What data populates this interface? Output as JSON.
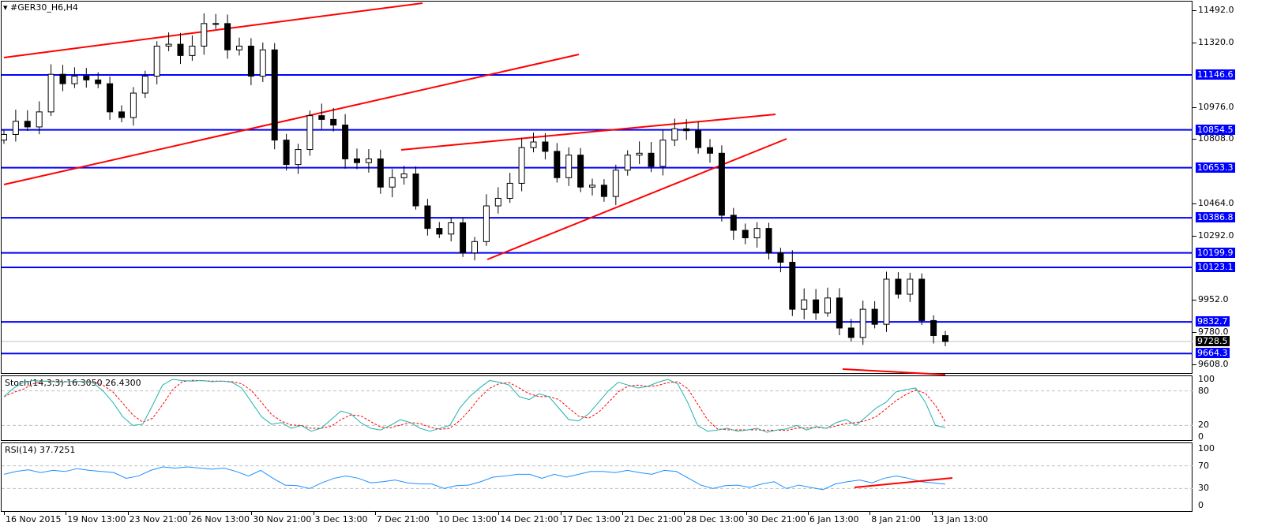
{
  "title": "#GER30_H6,H4",
  "colors": {
    "level": "#0000ff",
    "trend": "#ff0000",
    "stoch_main": "#20b2aa",
    "stoch_signal": "#ff0000",
    "rsi": "#1e90ff"
  },
  "chart_data": {
    "type": "candlestick",
    "title": "#GER30_H6,H4",
    "ylim": [
      9580,
      11520
    ],
    "y_ticks": [
      "11492.0",
      "11320.0",
      "10976.0",
      "10808.0",
      "10464.0",
      "10292.0",
      "9952.0",
      "9780.0",
      "9608.0"
    ],
    "levels": [
      {
        "price": 11146.6,
        "label": "11146.6"
      },
      {
        "price": 10854.5,
        "label": "10854.5"
      },
      {
        "price": 10653.3,
        "label": "10653.3"
      },
      {
        "price": 10386.8,
        "label": "10386.8"
      },
      {
        "price": 10199.9,
        "label": "10199.9"
      },
      {
        "price": 10123.1,
        "label": "10123.1"
      },
      {
        "price": 9832.7,
        "label": "9832.7"
      },
      {
        "price": 9664.3,
        "label": "9664.3"
      }
    ],
    "current_price": {
      "price": 9728.5,
      "label": "9728.5"
    },
    "closes": [
      10830,
      10900,
      10870,
      10950,
      11150,
      11100,
      11140,
      11120,
      11100,
      10950,
      10920,
      11050,
      11140,
      11300,
      11310,
      11250,
      11300,
      11420,
      11420,
      11280,
      11300,
      11140,
      11280,
      10800,
      10670,
      10750,
      10930,
      10910,
      10880,
      10700,
      10680,
      10700,
      10550,
      10600,
      10620,
      10450,
      10330,
      10300,
      10360,
      10200,
      10260,
      10450,
      10490,
      10570,
      10760,
      10790,
      10740,
      10600,
      10720,
      10550,
      10560,
      10500,
      10640,
      10720,
      10730,
      10660,
      10800,
      10860,
      10850,
      10760,
      10730,
      10400,
      10320,
      10280,
      10330,
      10200,
      10150,
      9900,
      9950,
      9880,
      9960,
      9800,
      9750,
      9900,
      9820,
      10060,
      9980,
      10060,
      9840,
      9760,
      9728.5
    ],
    "x_labels": [
      "16 Nov 2015",
      "19 Nov 13:00",
      "23 Nov 21:00",
      "26 Nov 13:00",
      "30 Nov 21:00",
      "3 Dec 13:00",
      "7 Dec 21:00",
      "10 Dec 13:00",
      "14 Dec 21:00",
      "17 Dec 13:00",
      "21 Dec 21:00",
      "28 Dec 13:00",
      "30 Dec 21:00",
      "6 Jan 13:00",
      "8 Jan 21:00",
      "13 Jan 13:00"
    ]
  },
  "stoch": {
    "label": "Stoch(14,3,3) 16.3050 26.4300",
    "levels": [
      "100",
      "80",
      "20",
      "0"
    ],
    "main": [
      70,
      85,
      95,
      98,
      97,
      96,
      95,
      97,
      96,
      94,
      80,
      60,
      35,
      20,
      22,
      55,
      90,
      100,
      98,
      97,
      98,
      96,
      97,
      95,
      85,
      60,
      35,
      22,
      25,
      15,
      20,
      10,
      15,
      30,
      45,
      40,
      25,
      15,
      12,
      20,
      30,
      25,
      15,
      10,
      15,
      20,
      50,
      70,
      85,
      98,
      95,
      90,
      70,
      65,
      75,
      70,
      50,
      30,
      28,
      40,
      60,
      80,
      95,
      90,
      85,
      88,
      95,
      100,
      92,
      60,
      20,
      10,
      12,
      15,
      10,
      12,
      15,
      8,
      12,
      14,
      20,
      12,
      18,
      15,
      25,
      30,
      20,
      35,
      50,
      60,
      78,
      82,
      85,
      60,
      20,
      16.3
    ]
  },
  "rsi": {
    "label": "RSI(14) 37.7251",
    "levels": [
      "100",
      "70",
      "30",
      "0"
    ],
    "values": [
      55,
      60,
      63,
      58,
      62,
      60,
      65,
      62,
      60,
      58,
      48,
      52,
      62,
      68,
      66,
      68,
      66,
      64,
      66,
      60,
      52,
      62,
      48,
      36,
      35,
      30,
      40,
      48,
      52,
      48,
      40,
      42,
      45,
      40,
      38,
      38,
      30,
      35,
      36,
      42,
      50,
      52,
      55,
      55,
      48,
      55,
      50,
      55,
      60,
      60,
      58,
      62,
      58,
      55,
      62,
      60,
      48,
      36,
      30,
      35,
      36,
      32,
      38,
      42,
      30,
      36,
      32,
      28,
      38,
      42,
      45,
      40,
      48,
      52,
      48,
      42,
      40,
      37.7
    ]
  }
}
